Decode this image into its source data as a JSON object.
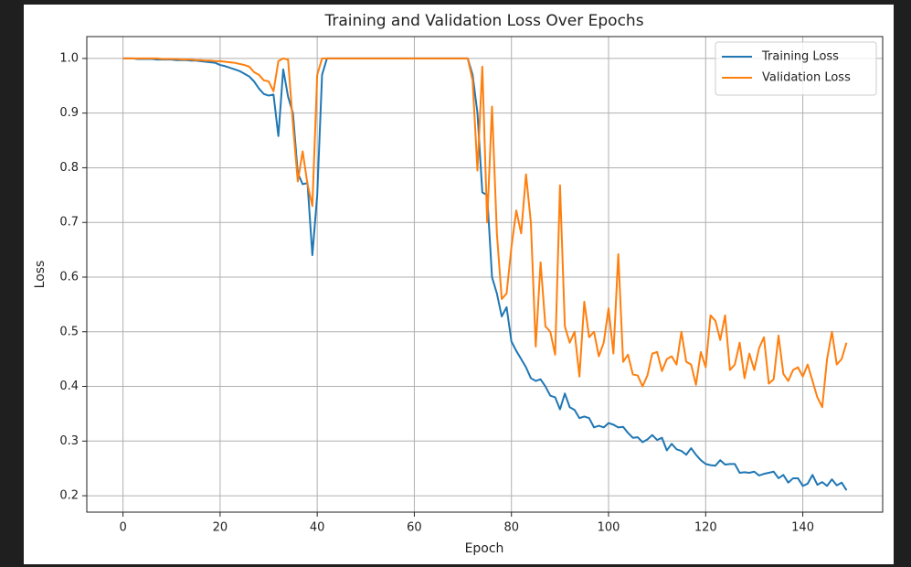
{
  "chart_data": {
    "type": "line",
    "title": "Training and Validation Loss Over Epochs",
    "xlabel": "Epoch",
    "ylabel": "Loss",
    "x": [
      0,
      1,
      2,
      3,
      4,
      5,
      6,
      7,
      8,
      9,
      10,
      11,
      12,
      13,
      14,
      15,
      16,
      17,
      18,
      19,
      20,
      21,
      22,
      23,
      24,
      25,
      26,
      27,
      28,
      29,
      30,
      31,
      32,
      33,
      34,
      35,
      36,
      37,
      38,
      39,
      40,
      41,
      42,
      43,
      44,
      45,
      46,
      47,
      48,
      49,
      50,
      51,
      52,
      53,
      54,
      55,
      56,
      57,
      58,
      59,
      60,
      61,
      62,
      63,
      64,
      65,
      66,
      67,
      68,
      69,
      70,
      71,
      72,
      73,
      74,
      75,
      76,
      77,
      78,
      79,
      80,
      81,
      82,
      83,
      84,
      85,
      86,
      87,
      88,
      89,
      90,
      91,
      92,
      93,
      94,
      95,
      96,
      97,
      98,
      99,
      100,
      101,
      102,
      103,
      104,
      105,
      106,
      107,
      108,
      109,
      110,
      111,
      112,
      113,
      114,
      115,
      116,
      117,
      118,
      119,
      120,
      121,
      122,
      123,
      124,
      125,
      126,
      127,
      128,
      129,
      130,
      131,
      132,
      133,
      134,
      135,
      136,
      137,
      138,
      139,
      140,
      141,
      142,
      143,
      144,
      145,
      146,
      147,
      148,
      149
    ],
    "series": [
      {
        "name": "Training Loss",
        "color": "#1f77b4",
        "values": [
          1.0,
          1.0,
          1.0,
          0.999,
          0.999,
          0.999,
          0.999,
          0.998,
          0.998,
          0.998,
          0.998,
          0.997,
          0.997,
          0.997,
          0.996,
          0.996,
          0.995,
          0.994,
          0.993,
          0.992,
          0.988,
          0.986,
          0.983,
          0.98,
          0.977,
          0.972,
          0.967,
          0.958,
          0.945,
          0.935,
          0.932,
          0.934,
          0.858,
          0.98,
          0.93,
          0.9,
          0.79,
          0.77,
          0.772,
          0.64,
          0.75,
          0.97,
          1.0,
          1.0,
          1.0,
          1.0,
          1.0,
          1.0,
          1.0,
          1.0,
          1.0,
          1.0,
          1.0,
          1.0,
          1.0,
          1.0,
          1.0,
          1.0,
          1.0,
          1.0,
          1.0,
          1.0,
          1.0,
          1.0,
          1.0,
          1.0,
          1.0,
          1.0,
          1.0,
          1.0,
          1.0,
          1.0,
          0.97,
          0.9,
          0.755,
          0.75,
          0.6,
          0.57,
          0.528,
          0.545,
          0.482,
          0.465,
          0.45,
          0.435,
          0.415,
          0.41,
          0.413,
          0.4,
          0.383,
          0.38,
          0.358,
          0.387,
          0.362,
          0.357,
          0.342,
          0.345,
          0.342,
          0.325,
          0.328,
          0.325,
          0.333,
          0.33,
          0.325,
          0.326,
          0.315,
          0.306,
          0.307,
          0.298,
          0.303,
          0.311,
          0.302,
          0.306,
          0.283,
          0.295,
          0.285,
          0.282,
          0.275,
          0.287,
          0.275,
          0.265,
          0.258,
          0.256,
          0.255,
          0.265,
          0.257,
          0.258,
          0.258,
          0.242,
          0.243,
          0.242,
          0.244,
          0.237,
          0.24,
          0.242,
          0.244,
          0.232,
          0.238,
          0.224,
          0.232,
          0.232,
          0.218,
          0.222,
          0.238,
          0.22,
          0.225,
          0.218,
          0.23,
          0.219,
          0.224,
          0.21
        ]
      },
      {
        "name": "Validation Loss",
        "color": "#ff7f0e",
        "values": [
          1.0,
          1.0,
          1.0,
          1.0,
          1.0,
          1.0,
          1.0,
          1.0,
          0.999,
          0.999,
          0.999,
          0.999,
          0.998,
          0.998,
          0.998,
          0.997,
          0.997,
          0.996,
          0.996,
          0.995,
          0.995,
          0.994,
          0.993,
          0.992,
          0.99,
          0.988,
          0.985,
          0.975,
          0.97,
          0.96,
          0.958,
          0.94,
          0.995,
          1.0,
          0.998,
          0.88,
          0.775,
          0.83,
          0.77,
          0.73,
          0.97,
          1.0,
          1.0,
          1.0,
          1.0,
          1.0,
          1.0,
          1.0,
          1.0,
          1.0,
          1.0,
          1.0,
          1.0,
          1.0,
          1.0,
          1.0,
          1.0,
          1.0,
          1.0,
          1.0,
          1.0,
          1.0,
          1.0,
          1.0,
          1.0,
          1.0,
          1.0,
          1.0,
          1.0,
          1.0,
          1.0,
          1.0,
          0.96,
          0.795,
          0.985,
          0.7,
          0.912,
          0.68,
          0.56,
          0.57,
          0.655,
          0.722,
          0.68,
          0.788,
          0.7,
          0.473,
          0.627,
          0.51,
          0.5,
          0.458,
          0.768,
          0.51,
          0.48,
          0.5,
          0.418,
          0.555,
          0.49,
          0.5,
          0.455,
          0.48,
          0.543,
          0.46,
          0.642,
          0.445,
          0.458,
          0.422,
          0.42,
          0.4,
          0.42,
          0.46,
          0.463,
          0.428,
          0.45,
          0.455,
          0.44,
          0.5,
          0.445,
          0.44,
          0.403,
          0.463,
          0.435,
          0.53,
          0.52,
          0.485,
          0.53,
          0.43,
          0.44,
          0.48,
          0.415,
          0.46,
          0.43,
          0.47,
          0.49,
          0.405,
          0.413,
          0.493,
          0.423,
          0.41,
          0.43,
          0.435,
          0.418,
          0.44,
          0.41,
          0.38,
          0.362,
          0.45,
          0.5,
          0.44,
          0.45,
          0.48
        ]
      }
    ],
    "xlim": [
      -7.45,
      156.45
    ],
    "ylim": [
      0.17,
      1.04
    ],
    "xticks": [
      0,
      20,
      40,
      60,
      80,
      100,
      120,
      140
    ],
    "yticks": [
      0.2,
      0.3,
      0.4,
      0.5,
      0.6,
      0.7,
      0.8,
      0.9,
      {
        "value": 1,
        "label": "1.0"
      }
    ],
    "grid": true,
    "legend": "upper right"
  }
}
